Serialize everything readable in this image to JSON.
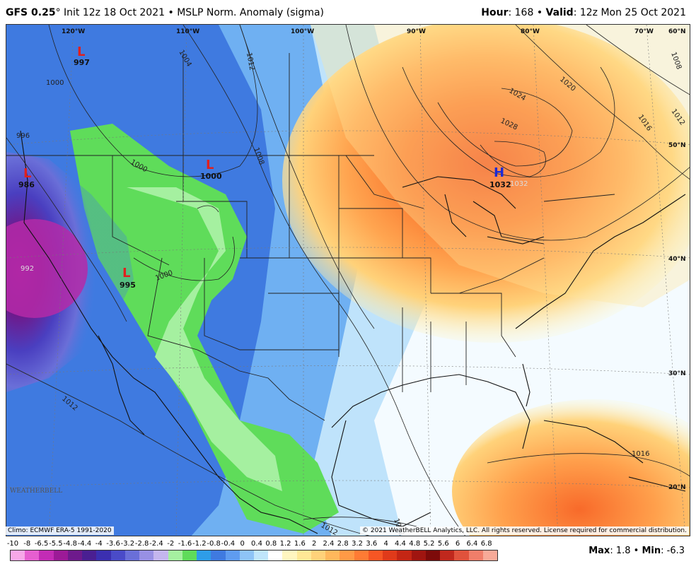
{
  "header": {
    "model": "GFS 0.25",
    "deg": "°",
    "init": "Init 12z 18 Oct 2021",
    "bullet": "•",
    "product": "MSLP Norm. Anomaly (sigma)",
    "hour_label": "Hour",
    "hour_value": ": 168 •",
    "valid_label": "Valid",
    "valid_value": ": 12z Mon 25 Oct 2021"
  },
  "map": {
    "lon_labels": [
      "120°W",
      "110°W",
      "100°W",
      "90°W",
      "80°W",
      "70°W",
      "60°N"
    ],
    "lat_labels": [
      "50°N",
      "40°N",
      "30°N",
      "20°N"
    ],
    "systems": [
      {
        "letter": "L",
        "value": "997",
        "color": "#e0201e"
      },
      {
        "letter": "L",
        "value": "986",
        "color": "#e0201e"
      },
      {
        "letter": "L",
        "value": "1000",
        "color": "#e0201e"
      },
      {
        "letter": "L",
        "value": "995",
        "color": "#e0201e"
      },
      {
        "letter": "H",
        "value": "1032",
        "color": "#1a2bd6"
      }
    ],
    "isobar_labels": [
      "1000",
      "1004",
      "1012",
      "1008",
      "1020",
      "1024",
      "1028",
      "1016",
      "1012",
      "996",
      "1000",
      "992",
      "1000",
      "1012",
      "1016",
      "1012",
      "1012",
      "1008",
      "1032"
    ],
    "logo": "WEATHERBELL"
  },
  "footer": {
    "climo": "Climo: ECMWF ERA-5 1991-2020",
    "copyright": "© 2021 WeatherBELL Analytics, LLC. All rights reserved. License required for commercial distribution."
  },
  "scale": {
    "ticks": [
      "-10",
      "-8",
      "-6.5",
      "-5.5",
      "-4.8",
      "-4.4",
      "-4",
      "-3.6",
      "-3.2",
      "-2.8",
      "-2.4",
      "-2",
      "-1.6",
      "-1.2",
      "-0.8",
      "-0.4",
      "0",
      "0.4",
      "0.8",
      "1.2",
      "1.6",
      "2",
      "2.4",
      "2.8",
      "3.2",
      "3.6",
      "4",
      "4.4",
      "4.8",
      "5.2",
      "5.6",
      "6",
      "6.4",
      "6.8"
    ],
    "colors": [
      "#f7a8e8",
      "#e65fd0",
      "#c32cb5",
      "#9c1a97",
      "#6e1a8c",
      "#4a1f92",
      "#3b2fb0",
      "#4a4bc8",
      "#6a6fd8",
      "#9890e4",
      "#c4b6ee",
      "#a5f0a0",
      "#5fdc5a",
      "#2e9de8",
      "#3f7ae0",
      "#5f9cf0",
      "#8ec4f7",
      "#c0e6fb",
      "#ffffff",
      "#fff6c0",
      "#ffe896",
      "#ffd27a",
      "#ffb85c",
      "#ff9a46",
      "#ff7b34",
      "#f65624",
      "#e03a1a",
      "#c42614",
      "#a01510",
      "#7d0b0a",
      "#c0281d",
      "#e0523c",
      "#f07e6a",
      "#f8aa98"
    ]
  },
  "stats": {
    "max_label": "Max",
    "max_value": ": 1.8 •",
    "min_label": "Min",
    "min_value": ": -6.3"
  }
}
